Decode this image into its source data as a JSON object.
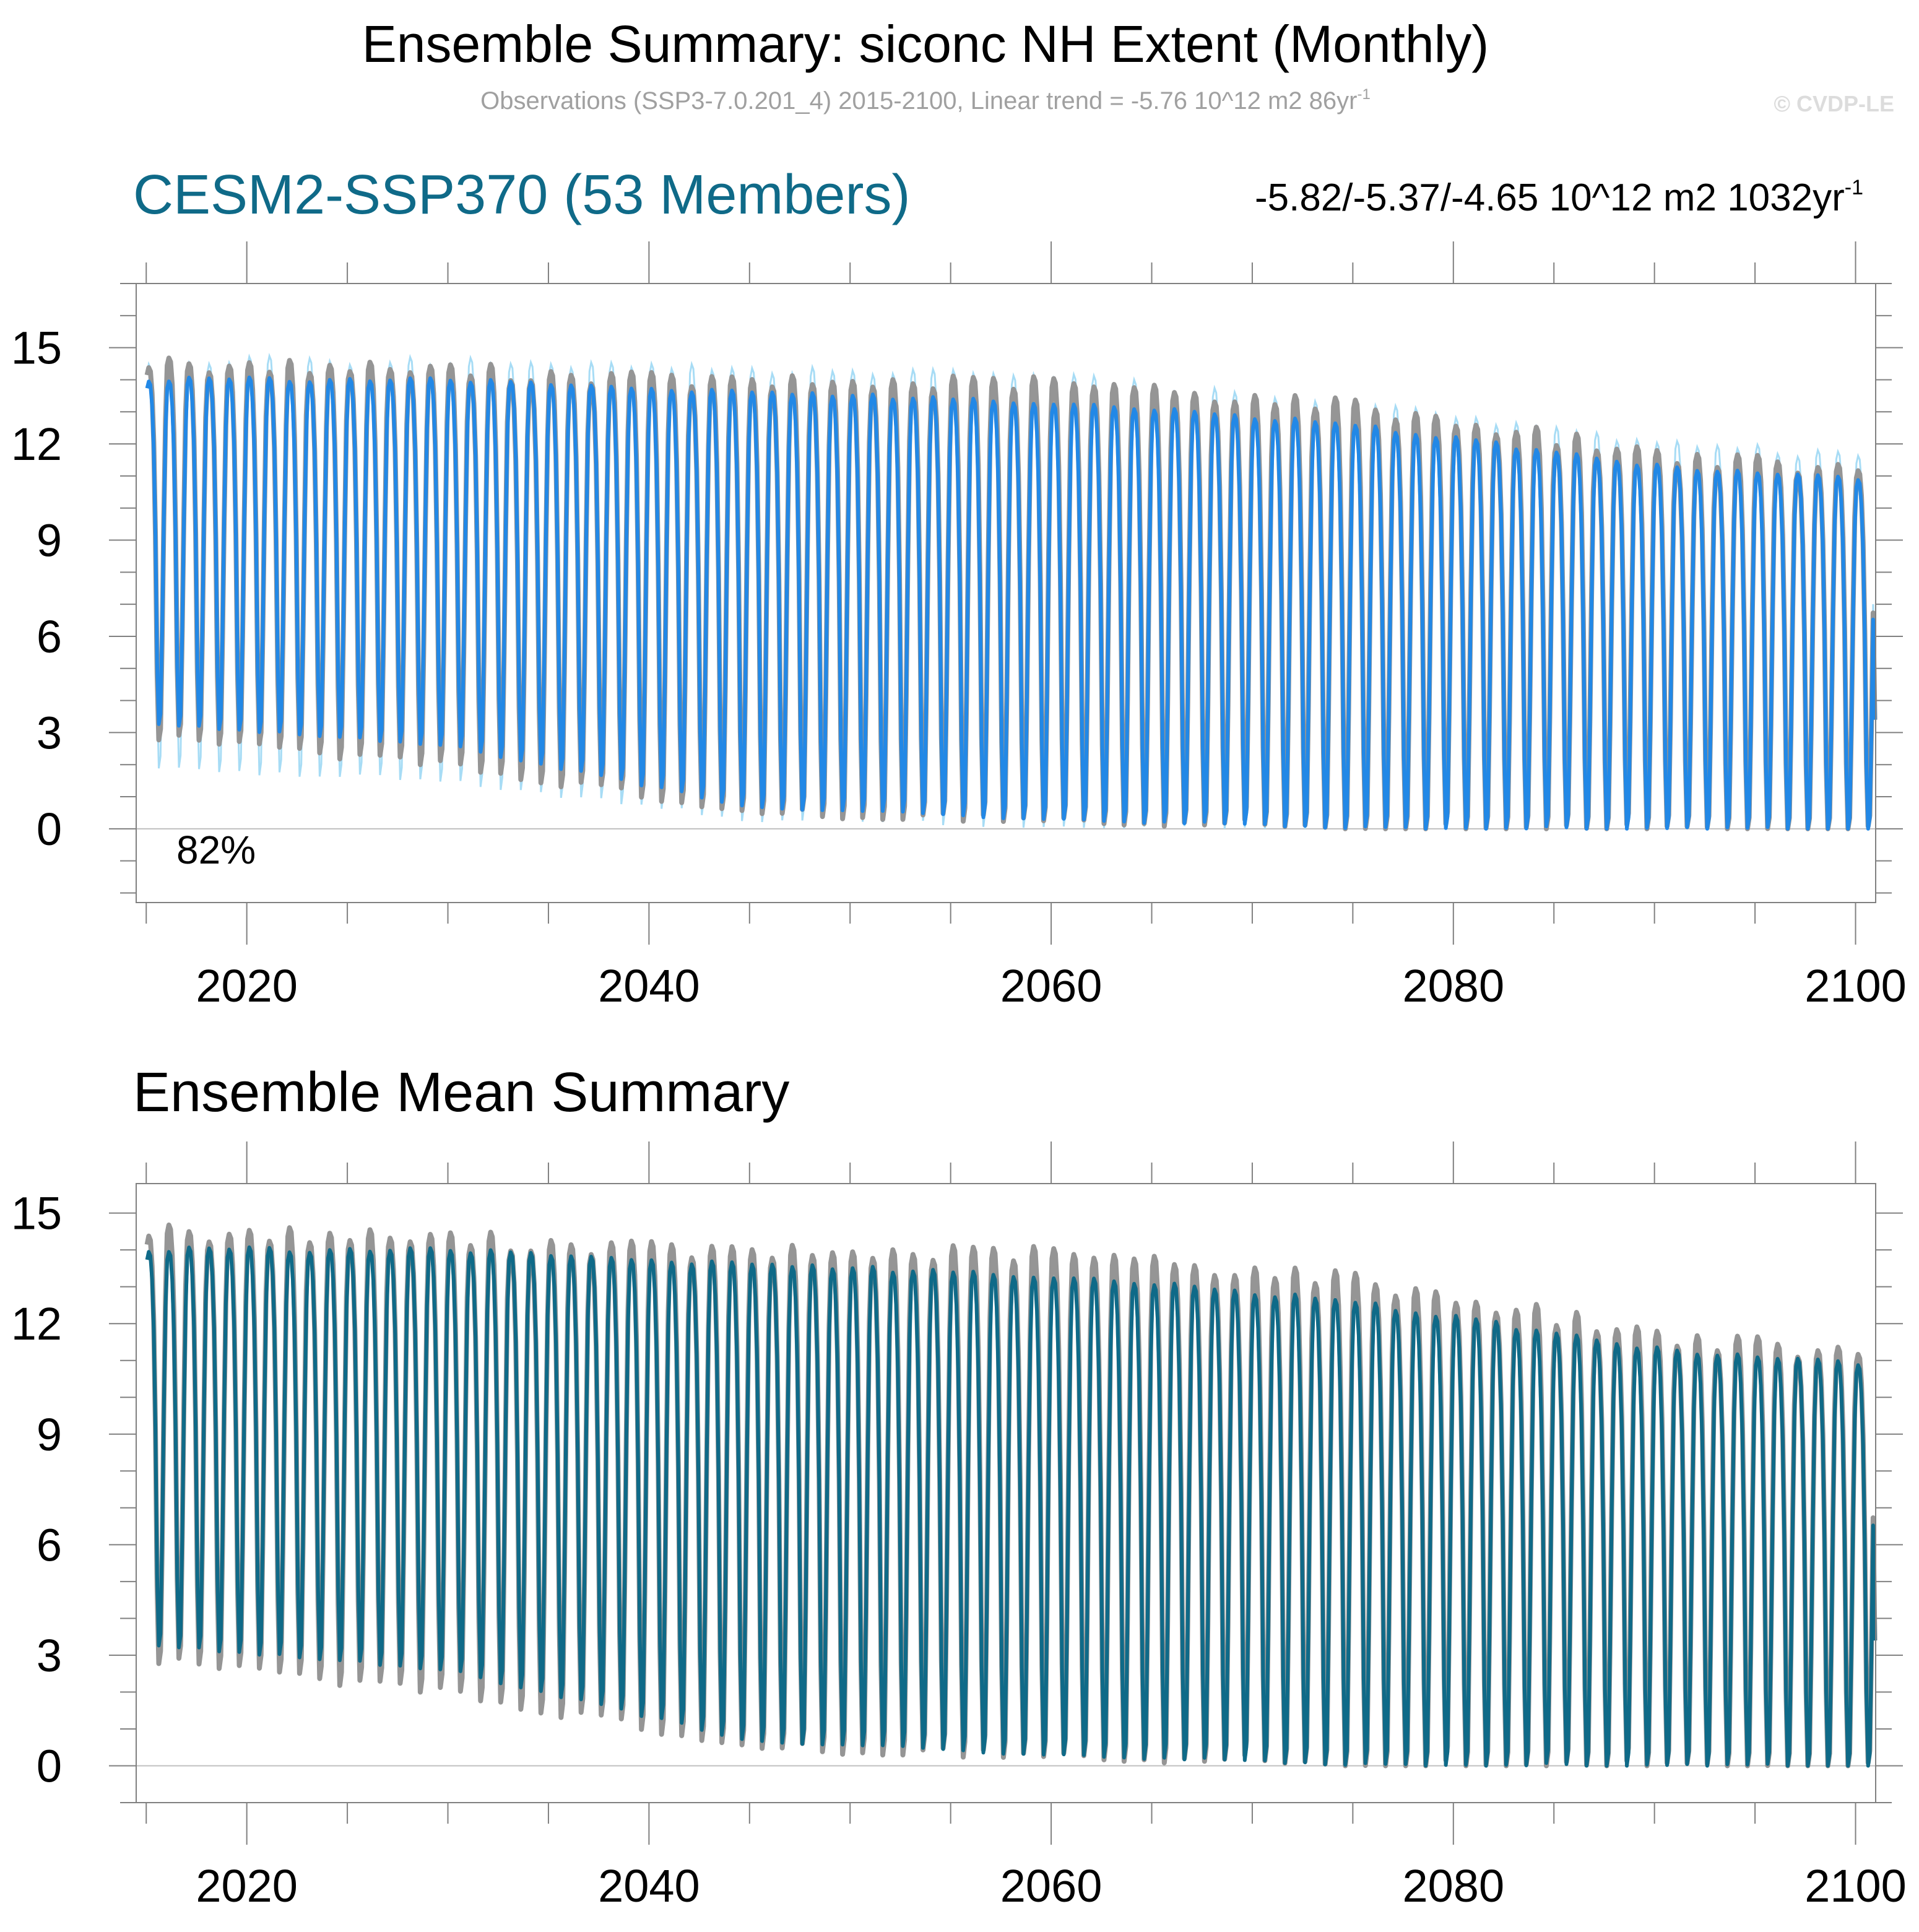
{
  "header": {
    "title": "Ensemble Summary: siconc NH Extent (Monthly)",
    "subtitle": "Observations (SSP3-7.0.201_4) 2015-2100, Linear trend = -5.76 10^12 m2 86yr",
    "subtitle_sup": "-1",
    "copyright": "© CVDP-LE"
  },
  "top_panel": {
    "ensemble_label": "CESM2-SSP370 (53 Members)",
    "trend_text": "-5.82/-5.37/-4.65 10^12 m2 1032yr",
    "trend_sup": "-1",
    "percent_label": "82%"
  },
  "bottom_panel": {
    "title": "Ensemble Mean Summary"
  },
  "colors": {
    "observations": "#959595",
    "ensemble_spread": "#a7dcf5",
    "ensemble_member": "#2288e6",
    "ensemble_mean": "#0f6a88",
    "ensemble_label": "#0f6a88",
    "axis": "#808080",
    "zero_line": "#c0c0c0"
  },
  "chart_data": [
    {
      "type": "line",
      "title": "CESM2-SSP370 (53 Members)",
      "xlabel": "",
      "ylabel": "",
      "xlim": [
        2014.5,
        2101
      ],
      "ylim": [
        -2.3,
        17
      ],
      "x_ticks": [
        2020,
        2040,
        2060,
        2080,
        2100
      ],
      "x_tick_labels": [
        "2020",
        "2040",
        "2060",
        "2080",
        "2100"
      ],
      "y_ticks": [
        0,
        3,
        6,
        9,
        12,
        15
      ],
      "y_tick_labels": [
        "0",
        "3",
        "6",
        "9",
        "12",
        "15"
      ],
      "grid": false,
      "series_description": "Monthly NH sea-ice extent (10^12 m2), one annual cycle per year 2015-2100",
      "years_anchor": [
        2015,
        2030,
        2045,
        2060,
        2075,
        2090,
        2100
      ],
      "obs_max_anchor": [
        14.5,
        14.3,
        13.9,
        13.9,
        13.2,
        11.7,
        11.1
      ],
      "obs_min_anchor": [
        2.9,
        2.0,
        0.5,
        0.3,
        0.05,
        0.02,
        0.0
      ],
      "mean_max_anchor": [
        14.0,
        14.0,
        13.6,
        13.3,
        12.6,
        11.3,
        10.9
      ],
      "mean_min_anchor": [
        3.3,
        2.6,
        0.7,
        0.3,
        0.05,
        0.02,
        0.0
      ],
      "spread_max_anchor": [
        14.6,
        14.6,
        14.3,
        14.1,
        13.2,
        12.1,
        11.6
      ],
      "spread_min_anchor": [
        1.9,
        1.5,
        0.3,
        0.1,
        0.0,
        0.0,
        0.0
      ],
      "final_month_value": 3.4
    },
    {
      "type": "line",
      "title": "Ensemble Mean Summary",
      "xlabel": "",
      "ylabel": "",
      "xlim": [
        2014.5,
        2101
      ],
      "ylim": [
        -1.0,
        15.8
      ],
      "x_ticks": [
        2020,
        2040,
        2060,
        2080,
        2100
      ],
      "x_tick_labels": [
        "2020",
        "2040",
        "2060",
        "2080",
        "2100"
      ],
      "y_ticks": [
        0,
        3,
        6,
        9,
        12,
        15
      ],
      "y_tick_labels": [
        "0",
        "3",
        "6",
        "9",
        "12",
        "15"
      ],
      "grid": false,
      "series_description": "Ensemble mean vs observations, monthly NH sea-ice extent (10^12 m2)",
      "years_anchor": [
        2015,
        2030,
        2045,
        2060,
        2075,
        2090,
        2100
      ],
      "obs_max_anchor": [
        14.5,
        14.3,
        13.9,
        13.9,
        13.2,
        11.7,
        11.1
      ],
      "obs_min_anchor": [
        2.9,
        2.0,
        0.5,
        0.3,
        0.05,
        0.02,
        0.0
      ],
      "mean_max_anchor": [
        14.0,
        14.0,
        13.6,
        13.3,
        12.6,
        11.3,
        10.9
      ],
      "mean_min_anchor": [
        3.3,
        2.6,
        0.7,
        0.3,
        0.05,
        0.02,
        0.0
      ],
      "final_month_value": 3.4
    }
  ]
}
